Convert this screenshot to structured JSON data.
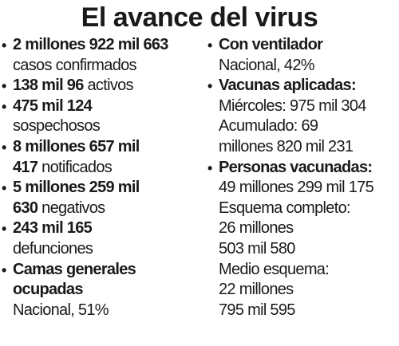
{
  "title": "El avance del virus",
  "columns": [
    {
      "items": [
        {
          "lines": [
            {
              "bold": "2 millones 922 mil 663"
            },
            {
              "text": "casos confirmados"
            }
          ]
        },
        {
          "lines": [
            {
              "bold": "138 mil 96",
              "text": "activos"
            }
          ]
        },
        {
          "lines": [
            {
              "bold": "475 mil 124"
            },
            {
              "text": "sospechosos"
            }
          ]
        },
        {
          "lines": [
            {
              "bold": "8 millones 657 mil"
            },
            {
              "bold": "417",
              "text": "notificados"
            }
          ]
        },
        {
          "lines": [
            {
              "bold": "5 millones 259 mil"
            },
            {
              "bold": "630",
              "text": "negativos"
            }
          ]
        },
        {
          "lines": [
            {
              "bold": "243 mil 165"
            },
            {
              "text": "defunciones"
            }
          ]
        },
        {
          "lines": [
            {
              "bold": "Camas generales"
            },
            {
              "bold": "ocupadas"
            },
            {
              "text": "Nacional, 51%"
            }
          ]
        }
      ]
    },
    {
      "items": [
        {
          "lines": [
            {
              "bold": "Con ventilador"
            },
            {
              "text": "Nacional, 42%"
            }
          ]
        },
        {
          "lines": [
            {
              "bold": "Vacunas aplicadas:"
            },
            {
              "text": "Miércoles: 975 mil 304"
            },
            {
              "text": "Acumulado: 69"
            },
            {
              "text": "millones 820 mil 231"
            }
          ]
        },
        {
          "lines": [
            {
              "bold": "Personas vacunadas:"
            },
            {
              "text": "49 millones 299 mil 175"
            },
            {
              "text": "Esquema completo:"
            },
            {
              "text": "26 millones"
            },
            {
              "text": "503 mil 580"
            },
            {
              "text": "Medio esquema:"
            },
            {
              "text": "22 millones"
            },
            {
              "text": "795 mil 595"
            }
          ]
        }
      ]
    }
  ]
}
